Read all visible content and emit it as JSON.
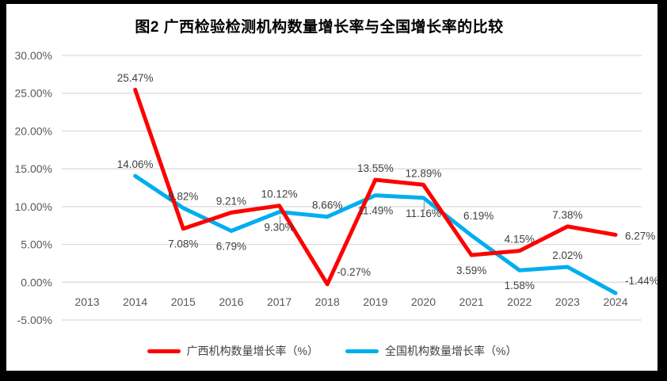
{
  "title": "图2 广西检验检测机构数量增长率与全国增长率的比较",
  "colors": {
    "guangxi_red": "#FE0000",
    "national_blue": "#00AEEF",
    "gridline": "#D9D9D9",
    "axis_text": "#595959",
    "data_label_text": "#404040",
    "leader_line": "#A6A6A6",
    "frame": "#000000",
    "background": "#FFFFFF"
  },
  "chart_data": {
    "type": "line",
    "title": "图2 广西检验检测机构数量增长率与全国增长率的比较",
    "categories": [
      "2013",
      "2014",
      "2015",
      "2016",
      "2017",
      "2018",
      "2019",
      "2020",
      "2021",
      "2022",
      "2023",
      "2024"
    ],
    "ylim": [
      -5,
      30
    ],
    "ytick_step": 5,
    "ytick_labels": [
      "30.00%",
      "25.00%",
      "20.00%",
      "15.00%",
      "10.00%",
      "5.00%",
      "0.00%",
      "-5.00%"
    ],
    "grid": true,
    "legend_position": "bottom",
    "series": [
      {
        "name": "广西机构数量增长率（%）",
        "color": "#FE0000",
        "points": [
          {
            "category": "2014",
            "value": 25.47,
            "label": "25.47%",
            "label_position": "above"
          },
          {
            "category": "2015",
            "value": 7.08,
            "label": "7.08%",
            "label_position": "below"
          },
          {
            "category": "2016",
            "value": 9.21,
            "label": "9.21%",
            "label_position": "above"
          },
          {
            "category": "2017",
            "value": 10.12,
            "label": "10.12%",
            "label_position": "above"
          },
          {
            "category": "2018",
            "value": -0.27,
            "label": "-0.27%",
            "label_position": "right-above"
          },
          {
            "category": "2019",
            "value": 13.55,
            "label": "13.55%",
            "label_position": "above"
          },
          {
            "category": "2020",
            "value": 12.89,
            "label": "12.89%",
            "label_position": "above"
          },
          {
            "category": "2021",
            "value": 3.59,
            "label": "3.59%",
            "label_position": "below"
          },
          {
            "category": "2022",
            "value": 4.15,
            "label": "4.15%",
            "label_position": "above"
          },
          {
            "category": "2023",
            "value": 7.38,
            "label": "7.38%",
            "label_position": "above"
          },
          {
            "category": "2024",
            "value": 6.27,
            "label": "6.27%",
            "label_position": "right"
          }
        ]
      },
      {
        "name": "全国机构数量增长率（%）",
        "color": "#00AEEF",
        "points": [
          {
            "category": "2014",
            "value": 14.06,
            "label": "14.06%",
            "label_position": "above"
          },
          {
            "category": "2015",
            "value": 9.82,
            "label": "9.82%",
            "label_position": "above"
          },
          {
            "category": "2016",
            "value": 6.79,
            "label": "6.79%",
            "label_position": "below"
          },
          {
            "category": "2017",
            "value": 9.3,
            "label": "9.30%",
            "label_position": "below",
            "leader": true
          },
          {
            "category": "2018",
            "value": 8.66,
            "label": "8.66%",
            "label_position": "above"
          },
          {
            "category": "2019",
            "value": 11.49,
            "label": "11.49%",
            "label_position": "below"
          },
          {
            "category": "2020",
            "value": 11.16,
            "label": "11.16%",
            "label_position": "below",
            "leader": true
          },
          {
            "category": "2021",
            "value": 6.19,
            "label": "6.19%",
            "label_position": "above-right"
          },
          {
            "category": "2022",
            "value": 1.58,
            "label": "1.58%",
            "label_position": "below"
          },
          {
            "category": "2023",
            "value": 2.02,
            "label": "2.02%",
            "label_position": "above"
          },
          {
            "category": "2024",
            "value": -1.44,
            "label": "-1.44%",
            "label_position": "right-above"
          }
        ]
      }
    ]
  }
}
